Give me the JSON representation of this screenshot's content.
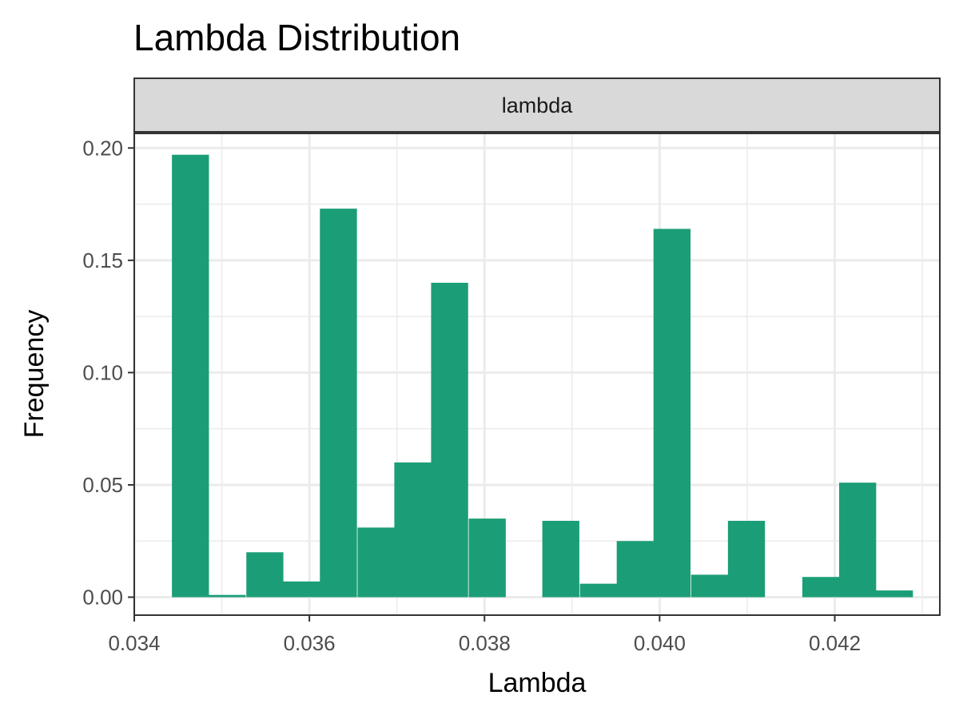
{
  "chart_data": {
    "type": "bar",
    "title": "Lambda Distribution",
    "facet_label": "lambda",
    "xlabel": "Lambda",
    "ylabel": "Frequency",
    "xlim": [
      0.034,
      0.0432
    ],
    "ylim": [
      -0.008,
      0.2065
    ],
    "x_ticks": [
      0.034,
      0.036,
      0.038,
      0.04,
      0.042
    ],
    "x_tick_labels": [
      "0.034",
      "0.036",
      "0.038",
      "0.040",
      "0.042"
    ],
    "y_ticks": [
      0.0,
      0.05,
      0.1,
      0.15,
      0.2
    ],
    "y_tick_labels": [
      "0.00",
      "0.05",
      "0.10",
      "0.15",
      "0.20"
    ],
    "grid": true,
    "bin_width": 0.000423,
    "bins": [
      {
        "x0": 0.03443,
        "value": 0.197
      },
      {
        "x0": 0.03485,
        "value": 0.001
      },
      {
        "x0": 0.03528,
        "value": 0.02
      },
      {
        "x0": 0.0357,
        "value": 0.007
      },
      {
        "x0": 0.03612,
        "value": 0.173
      },
      {
        "x0": 0.03655,
        "value": 0.031
      },
      {
        "x0": 0.03697,
        "value": 0.06
      },
      {
        "x0": 0.03739,
        "value": 0.14
      },
      {
        "x0": 0.03782,
        "value": 0.035
      },
      {
        "x0": 0.03824,
        "value": 0.0
      },
      {
        "x0": 0.03866,
        "value": 0.034
      },
      {
        "x0": 0.03909,
        "value": 0.006
      },
      {
        "x0": 0.03951,
        "value": 0.025
      },
      {
        "x0": 0.03993,
        "value": 0.164
      },
      {
        "x0": 0.04036,
        "value": 0.01
      },
      {
        "x0": 0.04078,
        "value": 0.034
      },
      {
        "x0": 0.0412,
        "value": 0.0
      },
      {
        "x0": 0.04163,
        "value": 0.009
      },
      {
        "x0": 0.04205,
        "value": 0.051
      },
      {
        "x0": 0.04247,
        "value": 0.003
      }
    ],
    "bar_color": "#1b9e77"
  }
}
